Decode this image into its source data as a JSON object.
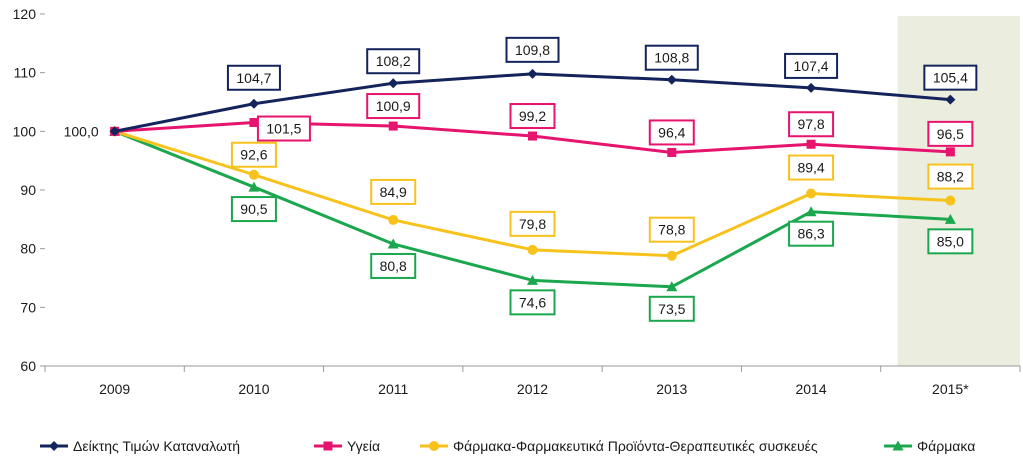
{
  "chart_data": {
    "type": "line",
    "title": "",
    "xlabel": "",
    "ylabel": "",
    "categories": [
      "2009",
      "2010",
      "2011",
      "2012",
      "2013",
      "2014",
      "2015*"
    ],
    "ylim": [
      60,
      120
    ],
    "yticks": [
      60,
      70,
      80,
      90,
      100,
      110,
      120
    ],
    "grid": false,
    "legend_position": "bottom",
    "highlight_category": "2015*",
    "highlight_color": "#EBEEDF",
    "series": [
      {
        "name": "Δείκτης Τιμών Καταναλωτή",
        "color": "#13235B",
        "marker": "diamond",
        "values": [
          100.0,
          104.7,
          108.2,
          109.8,
          108.8,
          107.4,
          105.4
        ],
        "labels": [
          "100,0",
          "104,7",
          "108,2",
          "109,8",
          "108,8",
          "107,4",
          "105,4"
        ]
      },
      {
        "name": "Υγεία",
        "color": "#E6136F",
        "marker": "square",
        "values": [
          100.0,
          101.5,
          100.9,
          99.2,
          96.4,
          97.8,
          96.5
        ],
        "labels": [
          "",
          "101,5",
          "100,9",
          "99,2",
          "96,4",
          "97,8",
          "96,5"
        ]
      },
      {
        "name": "Φάρμακα-Φαρμακευτικά Προϊόντα-Θεραπευτικές συσκευές",
        "color": "#F8C21C",
        "marker": "circle",
        "values": [
          100.0,
          92.6,
          84.9,
          79.8,
          78.8,
          89.4,
          88.2
        ],
        "labels": [
          "",
          "92,6",
          "84,9",
          "79,8",
          "78,8",
          "89,4",
          "88,2"
        ]
      },
      {
        "name": "Φάρμακα",
        "color": "#1BA74D",
        "marker": "triangle",
        "values": [
          100.0,
          90.5,
          80.8,
          74.6,
          73.5,
          86.3,
          85.0
        ],
        "labels": [
          "",
          "90,5",
          "80,8",
          "74,6",
          "73,5",
          "86,3",
          "85,0"
        ]
      }
    ]
  }
}
